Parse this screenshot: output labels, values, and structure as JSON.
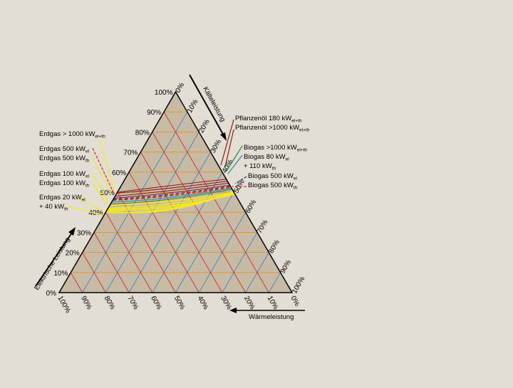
{
  "colors": {
    "background": "#e3ded4",
    "triangle_fill": "#c7bba6",
    "outline": "#000000",
    "grid_red": "#d2282a",
    "grid_orange": "#e1931e",
    "grid_blue": "#3c82c8",
    "yellow": "#f2ea1c",
    "dark_red": "#8a1818",
    "red": "#e0221a",
    "navy": "#1a2a8a",
    "green": "#2a8a3a",
    "teal": "#2a8aa0"
  },
  "axes": {
    "electric": {
      "name": "Elektrische Leistung",
      "ticks": [
        "0%",
        "10%",
        "20%",
        "30%",
        "40%",
        "50%",
        "60%",
        "70%",
        "80%",
        "90%",
        "100%"
      ]
    },
    "cooling": {
      "name": "Kälteleistung",
      "ticks": [
        "0%",
        "10%",
        "20%",
        "30%",
        "40%",
        "50%",
        "60%",
        "70%",
        "80%",
        "90%",
        "100%"
      ]
    },
    "heat": {
      "name": "Wärmeleistung",
      "ticks": [
        "0%",
        "10%",
        "20%",
        "30%",
        "40%",
        "50%",
        "60%",
        "70%",
        "80%",
        "90%",
        "100%"
      ]
    }
  },
  "labels_left": [
    {
      "id": "erdgas-1000",
      "lines": [
        [
          {
            "t": "Erdgas > 1000 kW"
          },
          {
            "t": "el+th",
            "sub": true
          }
        ]
      ]
    },
    {
      "id": "erdgas-500",
      "lines": [
        [
          {
            "t": "Erdgas 500 kW"
          },
          {
            "t": "el",
            "sub": true
          }
        ],
        [
          {
            "t": "Erdgas 500 kW"
          },
          {
            "t": "th",
            "sub": true
          }
        ]
      ]
    },
    {
      "id": "erdgas-100",
      "lines": [
        [
          {
            "t": "Erdgas 100 kW"
          },
          {
            "t": "el",
            "sub": true
          }
        ],
        [
          {
            "t": "Erdgas 100 kW"
          },
          {
            "t": "th",
            "sub": true
          }
        ]
      ]
    },
    {
      "id": "erdgas-20",
      "lines": [
        [
          {
            "t": "Erdgas 20 kW"
          },
          {
            "t": "el",
            "sub": true
          }
        ],
        [
          {
            "t": "+ 40 kW"
          },
          {
            "t": "th",
            "sub": true
          }
        ]
      ]
    }
  ],
  "labels_right": [
    {
      "id": "pflanzenoel",
      "lines": [
        [
          {
            "t": "Pflanzenöl 180 kW"
          },
          {
            "t": "el+th",
            "sub": true
          }
        ],
        [
          {
            "t": "Pflanzenöl >1000 kW"
          },
          {
            "t": "el+th",
            "sub": true
          }
        ]
      ]
    },
    {
      "id": "biogas-1000",
      "lines": [
        [
          {
            "t": "Biogas >1000 kW"
          },
          {
            "t": "el+th",
            "sub": true
          }
        ],
        [
          {
            "t": "Biogas 80 kW"
          },
          {
            "t": "el",
            "sub": true
          }
        ],
        [
          {
            "t": "+ 110 kW"
          },
          {
            "t": "th",
            "sub": true
          }
        ]
      ]
    },
    {
      "id": "biogas-500",
      "lines": [
        [
          {
            "t": "Biogas 500 kW"
          },
          {
            "t": "el",
            "sub": true
          }
        ],
        [
          {
            "t": "Biogas 500 kW"
          },
          {
            "t": "th",
            "sub": true
          }
        ]
      ]
    }
  ],
  "region_curves": [
    {
      "color": "yellow",
      "width": 1.6,
      "from_e": 40.5,
      "to_e": 50.5,
      "y_e": 37.0
    },
    {
      "color": "yellow",
      "width": 1.6,
      "from_e": 40.0,
      "to_e": 50.0,
      "y_e": 38.5
    },
    {
      "color": "yellow",
      "width": 1.6,
      "from_e": 41.0,
      "to_e": 49.5,
      "y_e": 40.0
    },
    {
      "color": "yellow",
      "width": 1.6,
      "from_e": 41.5,
      "to_e": 49.0,
      "y_e": 41.5
    },
    {
      "color": "yellow",
      "width": 1.6,
      "from_e": 42.0,
      "to_e": 49.5,
      "y_e": 43.0
    },
    {
      "color": "yellow",
      "width": 1.6,
      "from_e": 43.5,
      "to_e": 50.0,
      "y_e": 44.5
    },
    {
      "color": "green",
      "width": 1.0,
      "from_e": 44.0,
      "to_e": 51.5,
      "y_e": 45.5
    },
    {
      "color": "teal",
      "width": 1.0,
      "from_e": 45.0,
      "to_e": 52.0,
      "y_e": 46.5
    },
    {
      "color": "red",
      "width": 1.6,
      "from_e": 46.0,
      "to_e": 52.5,
      "y_e": 47.5,
      "dashed": true
    },
    {
      "color": "navy",
      "width": 1.2,
      "from_e": 46.5,
      "to_e": 53.0,
      "y_e": 48.3,
      "dashed": true
    },
    {
      "color": "dark_red",
      "width": 1.0,
      "from_e": 47.0,
      "to_e": 53.5,
      "y_e": 49.3
    },
    {
      "color": "dark_red",
      "width": 1.0,
      "from_e": 48.0,
      "to_e": 54.5,
      "y_e": 50.5
    },
    {
      "color": "dark_red",
      "width": 1.0,
      "from_e": 49.5,
      "to_e": 55.5,
      "y_e": 51.8
    },
    {
      "color": "dark_red",
      "width": 1.0,
      "from_e": 50.0,
      "to_e": 56.5,
      "y_e": 53.5
    }
  ]
}
